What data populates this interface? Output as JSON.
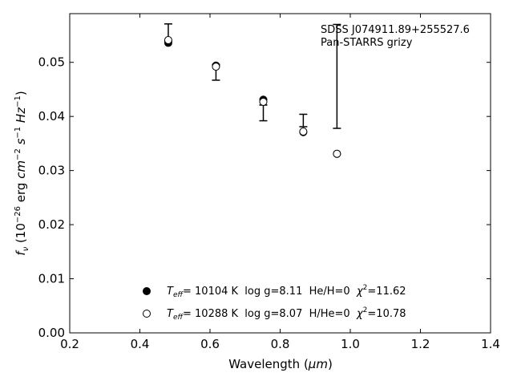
{
  "chart_data": {
    "type": "scatter",
    "xlabel_main": "Wavelength (",
    "xlabel_unit": "μm",
    "xlabel_close": ")",
    "ylabel": {
      "f": "f",
      "sub": "ν",
      "open": " (10",
      "exp1": "−26",
      "erg": " erg ",
      "cm": "cm",
      "exp2": "−2",
      "s": " s",
      "exp3": "−1",
      "hz": " Hz",
      "exp4": "−1",
      "close": ")"
    },
    "xlim": [
      0.2,
      1.4
    ],
    "ylim": [
      0.0,
      0.059
    ],
    "xticks": [
      0.2,
      0.4,
      0.6,
      0.8,
      1.0,
      1.2,
      1.4
    ],
    "xtick_labels": [
      "0.2",
      "0.4",
      "0.6",
      "0.8",
      "1.0",
      "1.2",
      "1.4"
    ],
    "yticks": [
      0.0,
      0.01,
      0.02,
      0.03,
      0.04,
      0.05
    ],
    "ytick_labels": [
      "0.00",
      "0.01",
      "0.02",
      "0.03",
      "0.04",
      "0.05"
    ],
    "annotation": [
      "SDSS J074911.89+255527.6",
      "Pan-STARRS grizy"
    ],
    "observed": [
      {
        "x": 0.481,
        "y": 0.0541,
        "yerr_low": 0.0002,
        "yerr_high": 0.003
      },
      {
        "x": 0.617,
        "y": 0.0496,
        "yerr_low": 0.0029,
        "yerr_high": 0.0
      },
      {
        "x": 0.752,
        "y": 0.0421,
        "yerr_low": 0.0029,
        "yerr_high": 0.0
      },
      {
        "x": 0.866,
        "y": 0.0381,
        "yerr_low": 0.0,
        "yerr_high": 0.0023
      },
      {
        "x": 0.962,
        "y": 0.0378,
        "yerr_low": 0.0,
        "yerr_high": 0.0192
      }
    ],
    "series": [
      {
        "name": "model-filled",
        "marker": "filled",
        "legend": {
          "t": "T",
          "sub": "eff",
          "rest": "= 10104 K  log g=8.11  He/H=0  ",
          "chi": "χ",
          "sup": "2",
          "val": "=11.62"
        },
        "x": [
          0.481,
          0.617,
          0.752,
          0.866,
          0.962
        ],
        "y": [
          0.0536,
          0.0494,
          0.0431,
          0.0371,
          0.0331
        ]
      },
      {
        "name": "model-open",
        "marker": "open",
        "legend": {
          "t": "T",
          "sub": "eff",
          "rest": "= 10288 K  log g=8.07  H/He=0  ",
          "chi": "χ",
          "sup": "2",
          "val": "=10.78"
        },
        "x": [
          0.481,
          0.617,
          0.752,
          0.866,
          0.962
        ],
        "y": [
          0.0541,
          0.0492,
          0.0427,
          0.0372,
          0.0331
        ]
      }
    ]
  }
}
